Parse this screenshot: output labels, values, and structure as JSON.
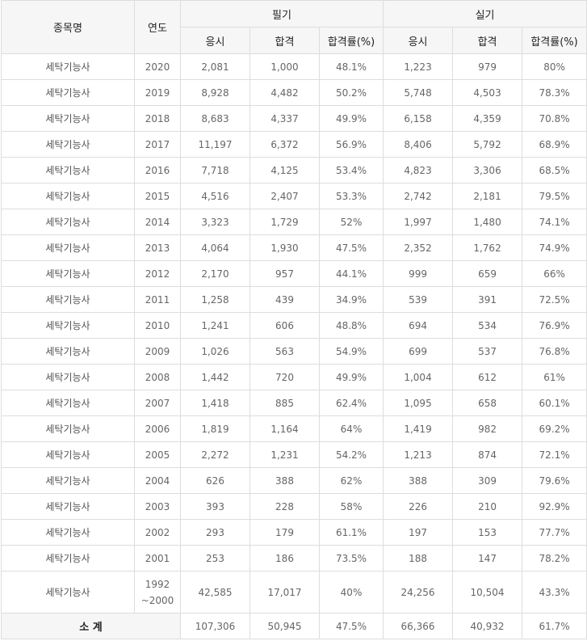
{
  "header": {
    "name": "종목명",
    "year": "연도",
    "written": "필기",
    "practical": "실기",
    "applied": "응시",
    "passed": "합격",
    "rate": "합격률(%)"
  },
  "rows": [
    {
      "name": "세탁기능사",
      "year": "2020",
      "w_applied": "2,081",
      "w_passed": "1,000",
      "w_rate": "48.1%",
      "p_applied": "1,223",
      "p_passed": "979",
      "p_rate": "80%"
    },
    {
      "name": "세탁기능사",
      "year": "2019",
      "w_applied": "8,928",
      "w_passed": "4,482",
      "w_rate": "50.2%",
      "p_applied": "5,748",
      "p_passed": "4,503",
      "p_rate": "78.3%"
    },
    {
      "name": "세탁기능사",
      "year": "2018",
      "w_applied": "8,683",
      "w_passed": "4,337",
      "w_rate": "49.9%",
      "p_applied": "6,158",
      "p_passed": "4,359",
      "p_rate": "70.8%"
    },
    {
      "name": "세탁기능사",
      "year": "2017",
      "w_applied": "11,197",
      "w_passed": "6,372",
      "w_rate": "56.9%",
      "p_applied": "8,406",
      "p_passed": "5,792",
      "p_rate": "68.9%"
    },
    {
      "name": "세탁기능사",
      "year": "2016",
      "w_applied": "7,718",
      "w_passed": "4,125",
      "w_rate": "53.4%",
      "p_applied": "4,823",
      "p_passed": "3,306",
      "p_rate": "68.5%"
    },
    {
      "name": "세탁기능사",
      "year": "2015",
      "w_applied": "4,516",
      "w_passed": "2,407",
      "w_rate": "53.3%",
      "p_applied": "2,742",
      "p_passed": "2,181",
      "p_rate": "79.5%"
    },
    {
      "name": "세탁기능사",
      "year": "2014",
      "w_applied": "3,323",
      "w_passed": "1,729",
      "w_rate": "52%",
      "p_applied": "1,997",
      "p_passed": "1,480",
      "p_rate": "74.1%"
    },
    {
      "name": "세탁기능사",
      "year": "2013",
      "w_applied": "4,064",
      "w_passed": "1,930",
      "w_rate": "47.5%",
      "p_applied": "2,352",
      "p_passed": "1,762",
      "p_rate": "74.9%"
    },
    {
      "name": "세탁기능사",
      "year": "2012",
      "w_applied": "2,170",
      "w_passed": "957",
      "w_rate": "44.1%",
      "p_applied": "999",
      "p_passed": "659",
      "p_rate": "66%"
    },
    {
      "name": "세탁기능사",
      "year": "2011",
      "w_applied": "1,258",
      "w_passed": "439",
      "w_rate": "34.9%",
      "p_applied": "539",
      "p_passed": "391",
      "p_rate": "72.5%"
    },
    {
      "name": "세탁기능사",
      "year": "2010",
      "w_applied": "1,241",
      "w_passed": "606",
      "w_rate": "48.8%",
      "p_applied": "694",
      "p_passed": "534",
      "p_rate": "76.9%"
    },
    {
      "name": "세탁기능사",
      "year": "2009",
      "w_applied": "1,026",
      "w_passed": "563",
      "w_rate": "54.9%",
      "p_applied": "699",
      "p_passed": "537",
      "p_rate": "76.8%"
    },
    {
      "name": "세탁기능사",
      "year": "2008",
      "w_applied": "1,442",
      "w_passed": "720",
      "w_rate": "49.9%",
      "p_applied": "1,004",
      "p_passed": "612",
      "p_rate": "61%"
    },
    {
      "name": "세탁기능사",
      "year": "2007",
      "w_applied": "1,418",
      "w_passed": "885",
      "w_rate": "62.4%",
      "p_applied": "1,095",
      "p_passed": "658",
      "p_rate": "60.1%"
    },
    {
      "name": "세탁기능사",
      "year": "2006",
      "w_applied": "1,819",
      "w_passed": "1,164",
      "w_rate": "64%",
      "p_applied": "1,419",
      "p_passed": "982",
      "p_rate": "69.2%"
    },
    {
      "name": "세탁기능사",
      "year": "2005",
      "w_applied": "2,272",
      "w_passed": "1,231",
      "w_rate": "54.2%",
      "p_applied": "1,213",
      "p_passed": "874",
      "p_rate": "72.1%"
    },
    {
      "name": "세탁기능사",
      "year": "2004",
      "w_applied": "626",
      "w_passed": "388",
      "w_rate": "62%",
      "p_applied": "388",
      "p_passed": "309",
      "p_rate": "79.6%"
    },
    {
      "name": "세탁기능사",
      "year": "2003",
      "w_applied": "393",
      "w_passed": "228",
      "w_rate": "58%",
      "p_applied": "226",
      "p_passed": "210",
      "p_rate": "92.9%"
    },
    {
      "name": "세탁기능사",
      "year": "2002",
      "w_applied": "293",
      "w_passed": "179",
      "w_rate": "61.1%",
      "p_applied": "197",
      "p_passed": "153",
      "p_rate": "77.7%"
    },
    {
      "name": "세탁기능사",
      "year": "2001",
      "w_applied": "253",
      "w_passed": "186",
      "w_rate": "73.5%",
      "p_applied": "188",
      "p_passed": "147",
      "p_rate": "78.2%"
    },
    {
      "name": "세탁기능사",
      "year": "1992\n~2000",
      "w_applied": "42,585",
      "w_passed": "17,017",
      "w_rate": "40%",
      "p_applied": "24,256",
      "p_passed": "10,504",
      "p_rate": "43.3%"
    }
  ],
  "total": {
    "label": "소 계",
    "w_applied": "107,306",
    "w_passed": "50,945",
    "w_rate": "47.5%",
    "p_applied": "66,366",
    "p_passed": "40,932",
    "p_rate": "61.7%"
  }
}
